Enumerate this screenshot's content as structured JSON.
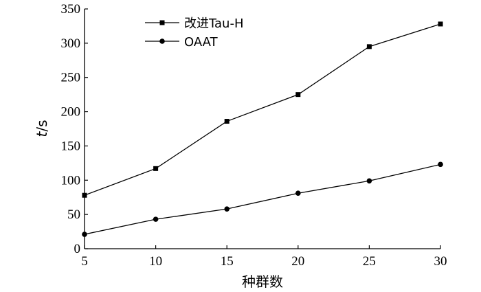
{
  "chart_data": {
    "type": "line",
    "x": [
      5,
      10,
      15,
      20,
      25,
      30
    ],
    "xticks": [
      "5",
      "10",
      "15",
      "20",
      "25",
      "30"
    ],
    "yticks": [
      "0",
      "50",
      "100",
      "150",
      "200",
      "250",
      "300",
      "350"
    ],
    "xlabel": "种群数",
    "ylabel": {
      "var": "t",
      "unit": "/s"
    },
    "xlim": [
      5,
      30
    ],
    "ylim": [
      0,
      350
    ],
    "grid": false,
    "legend_position": "top-left",
    "series": [
      {
        "name": "改进Tau-H",
        "marker": "square",
        "color": "#000000",
        "values": [
          78,
          117,
          186,
          225,
          295,
          328
        ]
      },
      {
        "name": "OAAT",
        "marker": "circle",
        "color": "#000000",
        "values": [
          21,
          43,
          58,
          81,
          99,
          123
        ]
      }
    ]
  }
}
